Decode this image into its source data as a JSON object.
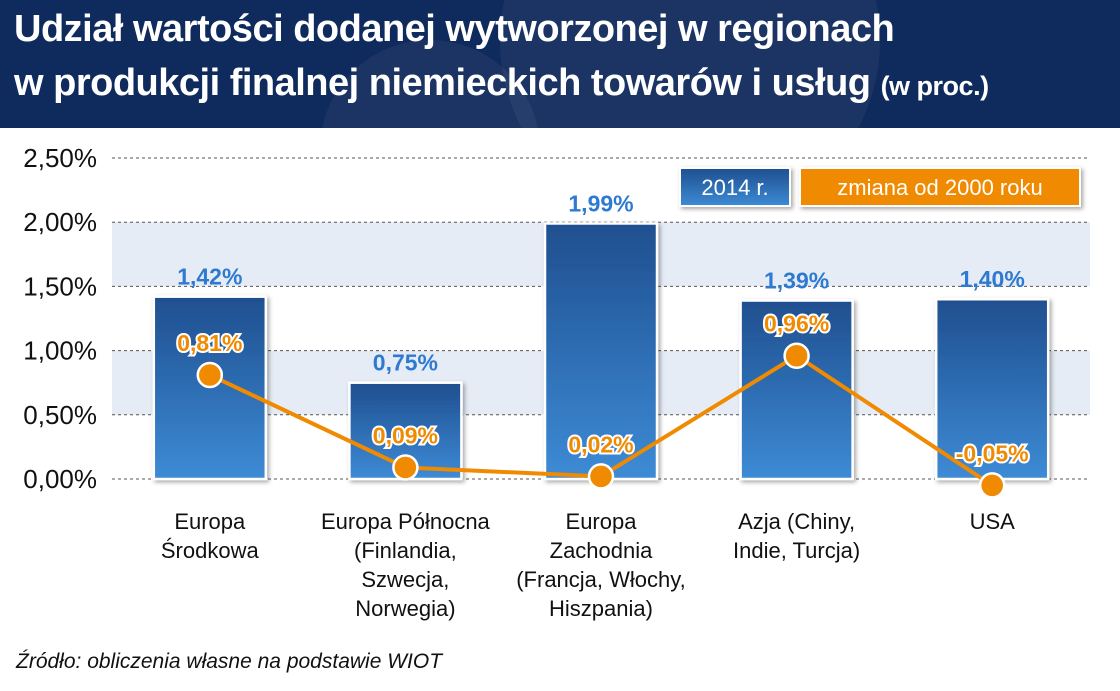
{
  "header": {
    "title_line1": "Udział wartości dodanej wytworzonej w regionach",
    "title_line2": "w produkcji finalnej niemieckich towarów i usług",
    "title_unit": "(w proc.)"
  },
  "source": "Źródło: obliczenia własne na podstawie WIOT",
  "colors": {
    "header_bg": "#0f2a5c",
    "bar_top": "#1f4f8f",
    "bar_bottom": "#3d8bd6",
    "line": "#f08a00",
    "bar_label": "#2e7ad1",
    "line_label": "#f08a00",
    "plot_band": "#e6ecf5"
  },
  "chart_data": {
    "type": "bar",
    "categories": [
      "Europa\nŚrodkowa",
      "Europa Północna\n(Finlandia,\nSzwecja,\nNorwegia)",
      "Europa\nZachodnia\n(Francja, Włochy,\nHiszpania)",
      "Azja (Chiny,\nIndie, Turcja)",
      "USA"
    ],
    "series": [
      {
        "name": "2014 r.",
        "type": "bar",
        "values": [
          1.42,
          0.75,
          1.99,
          1.39,
          1.4
        ],
        "labels": [
          "1,42%",
          "0,75%",
          "1,99%",
          "1,39%",
          "1,40%"
        ]
      },
      {
        "name": "zmiana od 2000 roku",
        "type": "line",
        "values": [
          0.81,
          0.09,
          0.02,
          0.96,
          -0.05
        ],
        "labels": [
          "0,81%",
          "0,09%",
          "0,02%",
          "0,96%",
          "-0,05%"
        ]
      }
    ],
    "ylim": [
      0,
      2.5
    ],
    "yticks": [
      0,
      0.5,
      1.0,
      1.5,
      2.0,
      2.5
    ],
    "ytick_labels": [
      "0,00%",
      "0,50%",
      "1,00%",
      "1,50%",
      "2,00%",
      "2,50%"
    ],
    "legend_position": "top-right",
    "grid": true
  }
}
